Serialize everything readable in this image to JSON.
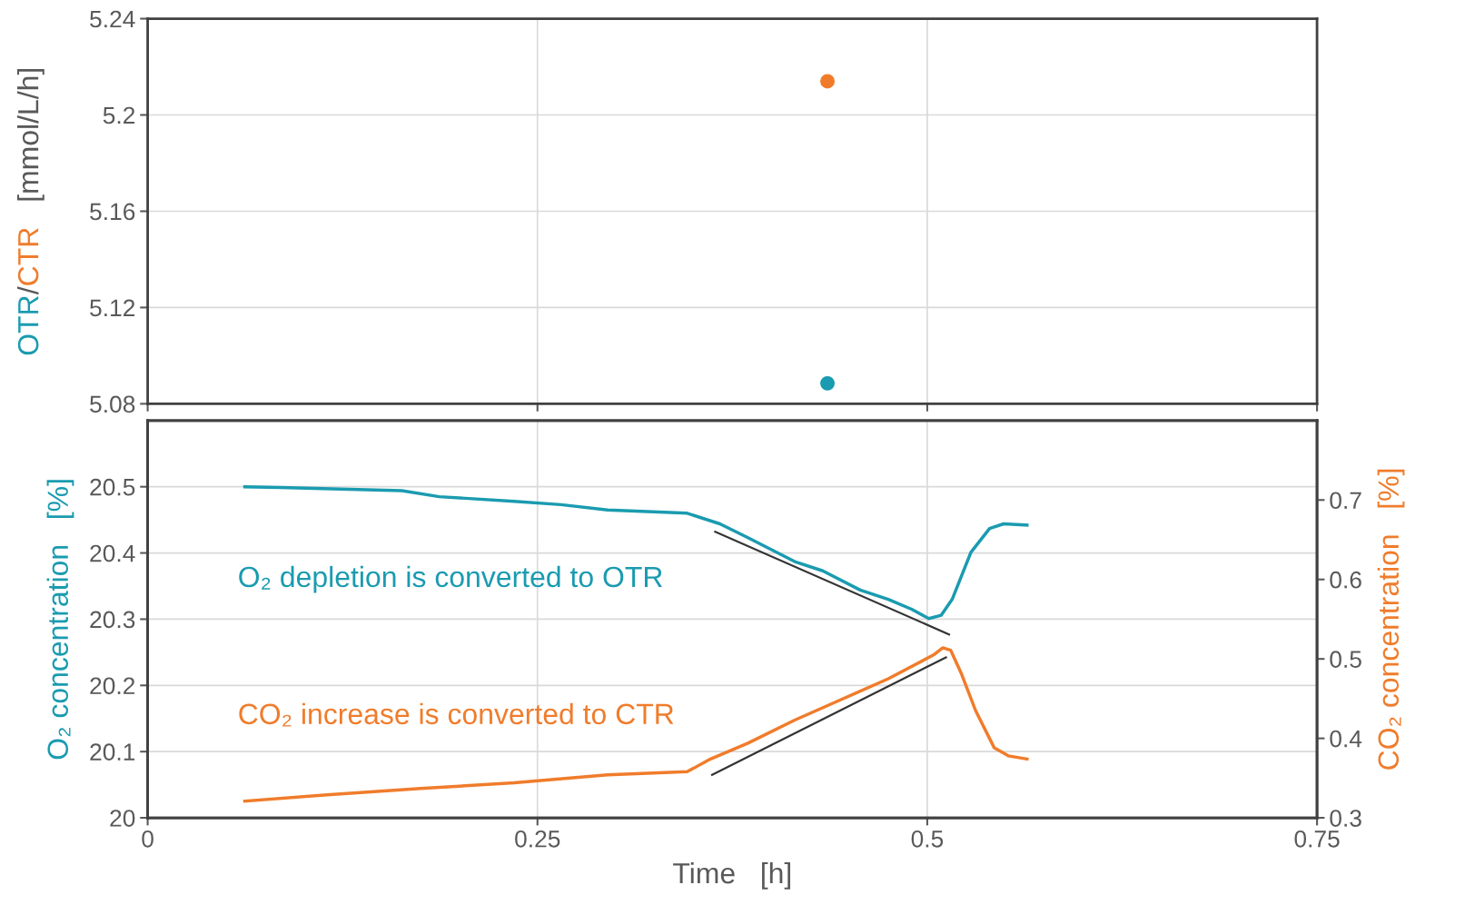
{
  "chart_data": [
    {
      "type": "scatter",
      "ylabel": "OTR/CTR   [mmol/L/h]",
      "xlim": [
        0,
        0.75
      ],
      "xticks": [
        0,
        0.25,
        0.5,
        0.75
      ],
      "ylim": [
        5.08,
        5.24
      ],
      "yticks": [
        5.08,
        5.12,
        5.16,
        5.2,
        5.24
      ],
      "grid": true,
      "tick_labels": "y",
      "marker": "circle",
      "series": [
        {
          "color": "#1a9bb0",
          "x": [
            0.436
          ],
          "values": [
            5.0885
          ]
        },
        {
          "color": "#f07c2b",
          "x": [
            0.436
          ],
          "values": [
            5.214
          ]
        }
      ]
    },
    {
      "type": "line",
      "xlabel": "Time   [h]",
      "ylabel": "O₂ concentration   [%]",
      "y2label": "CO₂ concentration   [%]",
      "xlim": [
        0,
        0.75
      ],
      "xticks": [
        0,
        0.25,
        0.5,
        0.75
      ],
      "ylim": [
        20,
        20.6
      ],
      "yticks": [
        20,
        20.1,
        20.2,
        20.3,
        20.4,
        20.5
      ],
      "y2lim": [
        0.3,
        0.8
      ],
      "y2ticks": [
        0.3,
        0.4,
        0.5,
        0.6,
        0.7
      ],
      "grid": true,
      "annotations": [
        "O₂ depletion is converted to OTR",
        "CO₂ increase is converted to CTR"
      ],
      "series": [
        {
          "color": "#1a9bb0",
          "x": [
            0.0623,
            0.085,
            0.163,
            0.187,
            0.235,
            0.265,
            0.295,
            0.346,
            0.367,
            0.385,
            0.415,
            0.433,
            0.457,
            0.475,
            0.49,
            0.501,
            0.509,
            0.516,
            0.528,
            0.54,
            0.549,
            0.564
          ],
          "values": [
            20.5,
            20.499,
            20.494,
            20.485,
            20.478,
            20.473,
            20.465,
            20.46,
            20.444,
            20.423,
            20.387,
            20.373,
            20.344,
            20.33,
            20.315,
            20.301,
            20.306,
            20.33,
            20.401,
            20.437,
            20.444,
            20.442
          ]
        },
        {
          "color": "#f07c2b",
          "axis": "y2",
          "x": [
            0.0623,
            0.115,
            0.175,
            0.235,
            0.295,
            0.346,
            0.361,
            0.385,
            0.415,
            0.445,
            0.475,
            0.504,
            0.51,
            0.515,
            0.522,
            0.531,
            0.543,
            0.552,
            0.564
          ],
          "values": [
            0.321,
            0.329,
            0.337,
            0.344,
            0.354,
            0.358,
            0.374,
            0.394,
            0.423,
            0.449,
            0.475,
            0.505,
            0.514,
            0.511,
            0.481,
            0.435,
            0.388,
            0.378,
            0.374
          ]
        },
        {
          "color": "#333333",
          "x": [
            0.364,
            0.514
          ],
          "values": [
            20.432,
            20.277
          ]
        },
        {
          "color": "#333333",
          "axis": "y2",
          "x": [
            0.362,
            0.512
          ],
          "values": [
            0.354,
            0.502
          ]
        }
      ]
    }
  ]
}
